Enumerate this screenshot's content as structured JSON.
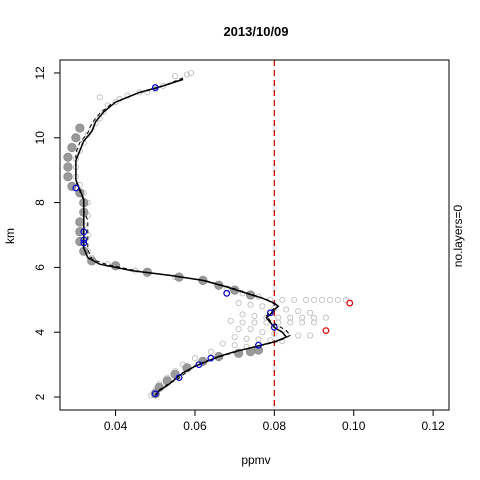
{
  "chart_data": {
    "type": "scatter",
    "title": "2013/10/09",
    "xlabel": "ppmv",
    "ylabel": "km",
    "right_label": "no.layers=0",
    "xlim": [
      0.026,
      0.124
    ],
    "ylim": [
      1.6,
      12.4
    ],
    "xticks": [
      0.04,
      0.06,
      0.08,
      0.1,
      0.12
    ],
    "xtick_labels": [
      "0.04",
      "0.06",
      "0.08",
      "0.10",
      "0.12"
    ],
    "yticks": [
      2,
      4,
      6,
      8,
      10,
      12
    ],
    "ytick_labels": [
      "2",
      "4",
      "6",
      "8",
      "10",
      "12"
    ],
    "threshold": 0.08,
    "colors": {
      "observations": "#9a9a9a",
      "profile": "#000000",
      "marker_blue": "#0000cc",
      "marker_red": "#dd0000",
      "threshold": "#cc0000"
    },
    "series": [
      {
        "style": "light-gray-circles",
        "points": [
          [
            0.058,
            11.95
          ],
          [
            0.059,
            12.0
          ],
          [
            0.055,
            11.9
          ],
          [
            0.052,
            11.6
          ],
          [
            0.05,
            11.5
          ],
          [
            0.048,
            11.4
          ],
          [
            0.046,
            11.4
          ],
          [
            0.043,
            11.3
          ],
          [
            0.041,
            11.2
          ],
          [
            0.04,
            11.1
          ],
          [
            0.036,
            11.25
          ],
          [
            0.038,
            11.0
          ],
          [
            0.037,
            10.8
          ],
          [
            0.036,
            10.6
          ],
          [
            0.035,
            10.45
          ],
          [
            0.034,
            10.3
          ],
          [
            0.033,
            10.1
          ],
          [
            0.032,
            9.85
          ],
          [
            0.031,
            9.6
          ],
          [
            0.03,
            9.35
          ],
          [
            0.03,
            9.1
          ],
          [
            0.03,
            8.8
          ],
          [
            0.031,
            8.55
          ],
          [
            0.032,
            8.3
          ],
          [
            0.033,
            8.0
          ],
          [
            0.033,
            7.6
          ],
          [
            0.032,
            7.3
          ],
          [
            0.033,
            7.0
          ],
          [
            0.032,
            6.8
          ],
          [
            0.033,
            6.5
          ],
          [
            0.034,
            6.3
          ],
          [
            0.038,
            6.1
          ],
          [
            0.045,
            5.9
          ],
          [
            0.055,
            5.7
          ],
          [
            0.062,
            5.55
          ],
          [
            0.068,
            5.35
          ],
          [
            0.072,
            5.2
          ],
          [
            0.076,
            5.1
          ],
          [
            0.079,
            5.0
          ],
          [
            0.082,
            5.0
          ],
          [
            0.085,
            5.0
          ],
          [
            0.088,
            5.0
          ],
          [
            0.09,
            5.0
          ],
          [
            0.092,
            5.0
          ],
          [
            0.094,
            5.0
          ],
          [
            0.096,
            5.0
          ],
          [
            0.098,
            5.0
          ],
          [
            0.071,
            4.9
          ],
          [
            0.074,
            4.85
          ],
          [
            0.077,
            4.8
          ],
          [
            0.08,
            4.75
          ],
          [
            0.083,
            4.7
          ],
          [
            0.086,
            4.65
          ],
          [
            0.089,
            4.6
          ],
          [
            0.072,
            4.55
          ],
          [
            0.075,
            4.5
          ],
          [
            0.078,
            4.45
          ],
          [
            0.081,
            4.45
          ],
          [
            0.084,
            4.45
          ],
          [
            0.087,
            4.45
          ],
          [
            0.09,
            4.45
          ],
          [
            0.093,
            4.45
          ],
          [
            0.069,
            4.35
          ],
          [
            0.072,
            4.3
          ],
          [
            0.075,
            4.3
          ],
          [
            0.078,
            4.3
          ],
          [
            0.081,
            4.3
          ],
          [
            0.084,
            4.3
          ],
          [
            0.087,
            4.3
          ],
          [
            0.09,
            4.3
          ],
          [
            0.071,
            4.1
          ],
          [
            0.074,
            4.1
          ],
          [
            0.077,
            4.0
          ],
          [
            0.08,
            3.95
          ],
          [
            0.083,
            3.95
          ],
          [
            0.086,
            3.9
          ],
          [
            0.089,
            3.9
          ],
          [
            0.07,
            3.85
          ],
          [
            0.073,
            3.8
          ],
          [
            0.076,
            3.78
          ],
          [
            0.079,
            3.75
          ],
          [
            0.082,
            3.72
          ],
          [
            0.067,
            3.65
          ],
          [
            0.07,
            3.6
          ],
          [
            0.073,
            3.55
          ],
          [
            0.076,
            3.5
          ],
          [
            0.064,
            3.4
          ],
          [
            0.06,
            3.2
          ],
          [
            0.057,
            3.0
          ],
          [
            0.055,
            2.8
          ],
          [
            0.053,
            2.6
          ],
          [
            0.051,
            2.4
          ],
          [
            0.05,
            2.2
          ],
          [
            0.049,
            2.05
          ]
        ]
      },
      {
        "style": "dark-gray-band",
        "points": [
          [
            0.031,
            10.3
          ],
          [
            0.03,
            10.0
          ],
          [
            0.029,
            9.7
          ],
          [
            0.028,
            9.4
          ],
          [
            0.028,
            9.1
          ],
          [
            0.028,
            8.8
          ],
          [
            0.029,
            8.5
          ],
          [
            0.031,
            8.3
          ],
          [
            0.032,
            8.0
          ],
          [
            0.032,
            7.7
          ],
          [
            0.031,
            7.4
          ],
          [
            0.031,
            7.1
          ],
          [
            0.031,
            6.8
          ],
          [
            0.032,
            6.5
          ],
          [
            0.034,
            6.2
          ],
          [
            0.04,
            6.05
          ],
          [
            0.048,
            5.85
          ],
          [
            0.056,
            5.7
          ],
          [
            0.062,
            5.6
          ],
          [
            0.066,
            5.45
          ],
          [
            0.07,
            5.3
          ],
          [
            0.074,
            5.15
          ],
          [
            0.076,
            3.45
          ],
          [
            0.074,
            3.4
          ],
          [
            0.071,
            3.35
          ],
          [
            0.066,
            3.25
          ],
          [
            0.062,
            3.1
          ],
          [
            0.058,
            2.9
          ],
          [
            0.055,
            2.7
          ],
          [
            0.053,
            2.5
          ],
          [
            0.051,
            2.3
          ],
          [
            0.05,
            2.1
          ]
        ]
      },
      {
        "style": "solid-line",
        "points": [
          [
            0.057,
            11.8
          ],
          [
            0.052,
            11.6
          ],
          [
            0.046,
            11.4
          ],
          [
            0.04,
            11.1
          ],
          [
            0.037,
            10.8
          ],
          [
            0.035,
            10.5
          ],
          [
            0.034,
            10.2
          ],
          [
            0.032,
            9.9
          ],
          [
            0.031,
            9.6
          ],
          [
            0.03,
            9.3
          ],
          [
            0.03,
            9.0
          ],
          [
            0.03,
            8.7
          ],
          [
            0.031,
            8.4
          ],
          [
            0.032,
            8.1
          ],
          [
            0.032,
            7.8
          ],
          [
            0.032,
            7.5
          ],
          [
            0.032,
            7.2
          ],
          [
            0.032,
            6.9
          ],
          [
            0.032,
            6.6
          ],
          [
            0.033,
            6.3
          ],
          [
            0.036,
            6.1
          ],
          [
            0.044,
            5.9
          ],
          [
            0.054,
            5.75
          ],
          [
            0.062,
            5.6
          ],
          [
            0.068,
            5.4
          ],
          [
            0.073,
            5.2
          ],
          [
            0.077,
            5.05
          ],
          [
            0.08,
            4.9
          ],
          [
            0.081,
            4.8
          ],
          [
            0.08,
            4.7
          ],
          [
            0.079,
            4.55
          ],
          [
            0.078,
            4.45
          ],
          [
            0.079,
            4.3
          ],
          [
            0.08,
            4.15
          ],
          [
            0.082,
            4.0
          ],
          [
            0.083,
            3.85
          ],
          [
            0.08,
            3.7
          ],
          [
            0.075,
            3.55
          ],
          [
            0.07,
            3.4
          ],
          [
            0.066,
            3.25
          ],
          [
            0.063,
            3.1
          ],
          [
            0.06,
            2.95
          ],
          [
            0.057,
            2.75
          ],
          [
            0.055,
            2.55
          ],
          [
            0.053,
            2.35
          ],
          [
            0.051,
            2.2
          ],
          [
            0.05,
            2.05
          ]
        ]
      },
      {
        "style": "dashed-line",
        "points": [
          [
            0.057,
            11.85
          ],
          [
            0.051,
            11.55
          ],
          [
            0.045,
            11.35
          ],
          [
            0.039,
            11.05
          ],
          [
            0.036,
            10.75
          ],
          [
            0.034,
            10.45
          ],
          [
            0.033,
            10.15
          ],
          [
            0.031,
            9.85
          ],
          [
            0.03,
            9.55
          ],
          [
            0.03,
            9.25
          ],
          [
            0.03,
            8.95
          ],
          [
            0.03,
            8.65
          ],
          [
            0.031,
            8.35
          ],
          [
            0.032,
            8.05
          ],
          [
            0.032,
            7.75
          ],
          [
            0.033,
            7.45
          ],
          [
            0.033,
            7.15
          ],
          [
            0.033,
            6.85
          ],
          [
            0.033,
            6.55
          ],
          [
            0.034,
            6.25
          ],
          [
            0.038,
            6.08
          ],
          [
            0.046,
            5.88
          ],
          [
            0.055,
            5.73
          ],
          [
            0.063,
            5.58
          ],
          [
            0.069,
            5.38
          ],
          [
            0.074,
            5.18
          ],
          [
            0.078,
            5.02
          ],
          [
            0.08,
            4.87
          ],
          [
            0.08,
            4.75
          ],
          [
            0.079,
            4.62
          ],
          [
            0.078,
            4.5
          ],
          [
            0.079,
            4.35
          ],
          [
            0.081,
            4.2
          ],
          [
            0.083,
            4.05
          ],
          [
            0.084,
            3.9
          ],
          [
            0.081,
            3.72
          ],
          [
            0.076,
            3.57
          ],
          [
            0.071,
            3.42
          ],
          [
            0.067,
            3.27
          ],
          [
            0.063,
            3.12
          ],
          [
            0.06,
            2.97
          ],
          [
            0.058,
            2.78
          ],
          [
            0.056,
            2.58
          ],
          [
            0.053,
            2.38
          ],
          [
            0.051,
            2.22
          ],
          [
            0.05,
            2.07
          ]
        ]
      },
      {
        "style": "blue-markers",
        "points": [
          [
            0.05,
            11.55
          ],
          [
            0.03,
            8.45
          ],
          [
            0.032,
            7.1
          ],
          [
            0.032,
            6.75
          ],
          [
            0.032,
            6.85
          ],
          [
            0.068,
            5.2
          ],
          [
            0.079,
            4.6
          ],
          [
            0.08,
            4.15
          ],
          [
            0.076,
            3.6
          ],
          [
            0.064,
            3.2
          ],
          [
            0.061,
            3.0
          ],
          [
            0.056,
            2.6
          ],
          [
            0.05,
            2.1
          ]
        ]
      },
      {
        "style": "red-markers",
        "points": [
          [
            0.099,
            4.9
          ],
          [
            0.093,
            4.05
          ]
        ]
      }
    ]
  }
}
